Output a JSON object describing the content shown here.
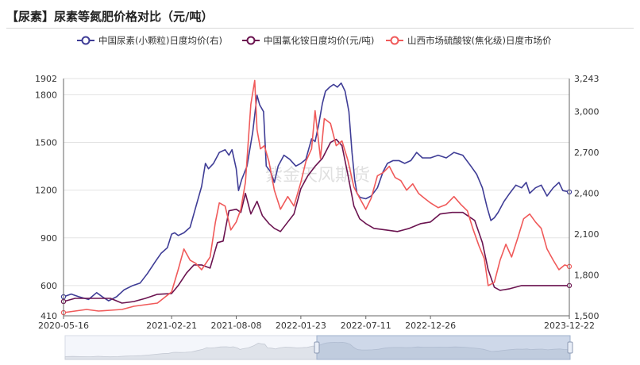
{
  "title": "【尿素】尿素等氮肥价格对比（元/吨）",
  "watermark": "紫金天风期货",
  "chart_data": {
    "type": "line",
    "title": "【尿素】尿素等氮肥价格对比（元/吨）",
    "x_ticks": [
      "2020-05-16",
      "2021-02-21",
      "2021-08-08",
      "2022-01-23",
      "2022-07-11",
      "2022-12-26",
      "2023-12-22"
    ],
    "x_range": [
      "2020-05-16",
      "2023-12-22"
    ],
    "y_left": {
      "ticks": [
        410,
        600,
        900,
        1200,
        1500,
        1800,
        1902
      ],
      "range": [
        410,
        1902
      ]
    },
    "y_right": {
      "ticks": [
        1500,
        1800,
        2100,
        2400,
        2700,
        3000,
        3243
      ],
      "range": [
        1500,
        3243
      ]
    },
    "legend_position": "top",
    "grid": true,
    "series": [
      {
        "name": "中国尿素(小颗粒)日度均价(右)",
        "color": "#3f3d96",
        "axis": "right",
        "points": [
          [
            "2020-05-16",
            1640
          ],
          [
            "2020-06-05",
            1660
          ],
          [
            "2020-06-25",
            1640
          ],
          [
            "2020-07-20",
            1620
          ],
          [
            "2020-08-10",
            1670
          ],
          [
            "2020-08-25",
            1640
          ],
          [
            "2020-09-10",
            1610
          ],
          [
            "2020-10-01",
            1640
          ],
          [
            "2020-10-20",
            1690
          ],
          [
            "2020-11-10",
            1720
          ],
          [
            "2020-12-01",
            1740
          ],
          [
            "2020-12-20",
            1810
          ],
          [
            "2021-01-10",
            1900
          ],
          [
            "2021-01-25",
            1960
          ],
          [
            "2021-02-10",
            2000
          ],
          [
            "2021-02-21",
            2100
          ],
          [
            "2021-03-01",
            2110
          ],
          [
            "2021-03-10",
            2090
          ],
          [
            "2021-03-25",
            2110
          ],
          [
            "2021-04-10",
            2150
          ],
          [
            "2021-04-25",
            2300
          ],
          [
            "2021-05-10",
            2450
          ],
          [
            "2021-05-20",
            2620
          ],
          [
            "2021-05-28",
            2580
          ],
          [
            "2021-06-10",
            2620
          ],
          [
            "2021-06-25",
            2700
          ],
          [
            "2021-07-10",
            2720
          ],
          [
            "2021-07-20",
            2680
          ],
          [
            "2021-07-28",
            2720
          ],
          [
            "2021-08-08",
            2580
          ],
          [
            "2021-08-14",
            2420
          ],
          [
            "2021-08-22",
            2500
          ],
          [
            "2021-09-05",
            2600
          ],
          [
            "2021-09-20",
            2850
          ],
          [
            "2021-10-01",
            3120
          ],
          [
            "2021-10-08",
            3050
          ],
          [
            "2021-10-18",
            3000
          ],
          [
            "2021-10-25",
            2600
          ],
          [
            "2021-11-05",
            2560
          ],
          [
            "2021-11-15",
            2480
          ],
          [
            "2021-11-25",
            2600
          ],
          [
            "2021-12-10",
            2680
          ],
          [
            "2021-12-25",
            2650
          ],
          [
            "2022-01-10",
            2600
          ],
          [
            "2022-01-23",
            2620
          ],
          [
            "2022-02-05",
            2650
          ],
          [
            "2022-02-20",
            2800
          ],
          [
            "2022-03-01",
            2780
          ],
          [
            "2022-03-10",
            2900
          ],
          [
            "2022-03-20",
            3060
          ],
          [
            "2022-03-28",
            3150
          ],
          [
            "2022-04-08",
            3180
          ],
          [
            "2022-04-18",
            3200
          ],
          [
            "2022-04-28",
            3180
          ],
          [
            "2022-05-08",
            3210
          ],
          [
            "2022-05-18",
            3150
          ],
          [
            "2022-05-28",
            3000
          ],
          [
            "2022-06-05",
            2700
          ],
          [
            "2022-06-12",
            2500
          ],
          [
            "2022-06-18",
            2400
          ],
          [
            "2022-06-26",
            2370
          ],
          [
            "2022-07-11",
            2360
          ],
          [
            "2022-07-25",
            2380
          ],
          [
            "2022-08-10",
            2440
          ],
          [
            "2022-08-25",
            2560
          ],
          [
            "2022-09-05",
            2620
          ],
          [
            "2022-09-20",
            2640
          ],
          [
            "2022-10-05",
            2640
          ],
          [
            "2022-10-20",
            2620
          ],
          [
            "2022-11-05",
            2640
          ],
          [
            "2022-11-20",
            2700
          ],
          [
            "2022-12-05",
            2660
          ],
          [
            "2022-12-26",
            2660
          ],
          [
            "2023-01-15",
            2680
          ],
          [
            "2023-02-05",
            2660
          ],
          [
            "2023-02-25",
            2700
          ],
          [
            "2023-03-20",
            2680
          ],
          [
            "2023-04-10",
            2600
          ],
          [
            "2023-04-25",
            2540
          ],
          [
            "2023-05-10",
            2440
          ],
          [
            "2023-05-22",
            2300
          ],
          [
            "2023-06-01",
            2200
          ],
          [
            "2023-06-10",
            2220
          ],
          [
            "2023-06-20",
            2260
          ],
          [
            "2023-07-05",
            2340
          ],
          [
            "2023-07-20",
            2400
          ],
          [
            "2023-08-05",
            2460
          ],
          [
            "2023-08-20",
            2440
          ],
          [
            "2023-09-01",
            2480
          ],
          [
            "2023-09-10",
            2400
          ],
          [
            "2023-09-25",
            2440
          ],
          [
            "2023-10-10",
            2460
          ],
          [
            "2023-10-25",
            2380
          ],
          [
            "2023-11-10",
            2440
          ],
          [
            "2023-11-25",
            2480
          ],
          [
            "2023-12-05",
            2420
          ],
          [
            "2023-12-22",
            2410
          ]
        ]
      },
      {
        "name": "中国氯化铵日度均价(元/吨)",
        "color": "#6b1450",
        "axis": "left",
        "points": [
          [
            "2020-05-16",
            500
          ],
          [
            "2020-06-15",
            520
          ],
          [
            "2020-07-15",
            520
          ],
          [
            "2020-08-15",
            520
          ],
          [
            "2020-09-15",
            520
          ],
          [
            "2020-10-15",
            490
          ],
          [
            "2020-11-15",
            500
          ],
          [
            "2020-12-15",
            520
          ],
          [
            "2021-01-15",
            545
          ],
          [
            "2021-02-21",
            550
          ],
          [
            "2021-03-10",
            600
          ],
          [
            "2021-04-01",
            680
          ],
          [
            "2021-04-20",
            730
          ],
          [
            "2021-05-10",
            730
          ],
          [
            "2021-06-01",
            710
          ],
          [
            "2021-06-20",
            870
          ],
          [
            "2021-07-05",
            880
          ],
          [
            "2021-07-20",
            1070
          ],
          [
            "2021-08-08",
            1080
          ],
          [
            "2021-08-20",
            1060
          ],
          [
            "2021-09-01",
            1180
          ],
          [
            "2021-09-15",
            1050
          ],
          [
            "2021-10-01",
            1130
          ],
          [
            "2021-10-15",
            1040
          ],
          [
            "2021-11-01",
            990
          ],
          [
            "2021-11-15",
            960
          ],
          [
            "2021-12-01",
            940
          ],
          [
            "2021-12-20",
            1000
          ],
          [
            "2022-01-05",
            1050
          ],
          [
            "2022-01-23",
            1210
          ],
          [
            "2022-02-10",
            1290
          ],
          [
            "2022-03-01",
            1350
          ],
          [
            "2022-03-20",
            1400
          ],
          [
            "2022-04-10",
            1500
          ],
          [
            "2022-04-25",
            1520
          ],
          [
            "2022-05-10",
            1480
          ],
          [
            "2022-05-25",
            1300
          ],
          [
            "2022-06-10",
            1100
          ],
          [
            "2022-06-25",
            1020
          ],
          [
            "2022-07-11",
            990
          ],
          [
            "2022-08-01",
            960
          ],
          [
            "2022-09-01",
            950
          ],
          [
            "2022-10-01",
            940
          ],
          [
            "2022-11-01",
            960
          ],
          [
            "2022-12-01",
            990
          ],
          [
            "2022-12-26",
            1000
          ],
          [
            "2023-01-20",
            1050
          ],
          [
            "2023-02-20",
            1060
          ],
          [
            "2023-03-20",
            1060
          ],
          [
            "2023-04-20",
            1010
          ],
          [
            "2023-05-10",
            870
          ],
          [
            "2023-05-25",
            700
          ],
          [
            "2023-06-10",
            590
          ],
          [
            "2023-06-25",
            570
          ],
          [
            "2023-07-20",
            580
          ],
          [
            "2023-08-20",
            600
          ],
          [
            "2023-09-20",
            600
          ],
          [
            "2023-10-20",
            600
          ],
          [
            "2023-11-20",
            600
          ],
          [
            "2023-12-22",
            600
          ]
        ]
      },
      {
        "name": "山西市场硫酸铵(焦化级)日度市场价",
        "color": "#f05a5a",
        "axis": "left",
        "points": [
          [
            "2020-05-16",
            430
          ],
          [
            "2020-06-15",
            440
          ],
          [
            "2020-07-15",
            450
          ],
          [
            "2020-08-15",
            440
          ],
          [
            "2020-09-15",
            445
          ],
          [
            "2020-10-15",
            450
          ],
          [
            "2020-11-15",
            470
          ],
          [
            "2020-12-15",
            480
          ],
          [
            "2021-01-15",
            490
          ],
          [
            "2021-02-21",
            560
          ],
          [
            "2021-03-10",
            700
          ],
          [
            "2021-03-25",
            830
          ],
          [
            "2021-04-10",
            760
          ],
          [
            "2021-04-25",
            740
          ],
          [
            "2021-05-10",
            700
          ],
          [
            "2021-06-01",
            780
          ],
          [
            "2021-06-15",
            1000
          ],
          [
            "2021-06-25",
            1120
          ],
          [
            "2021-07-10",
            1100
          ],
          [
            "2021-07-25",
            950
          ],
          [
            "2021-08-08",
            1000
          ],
          [
            "2021-08-20",
            1080
          ],
          [
            "2021-09-01",
            1250
          ],
          [
            "2021-09-15",
            1740
          ],
          [
            "2021-09-25",
            1890
          ],
          [
            "2021-10-01",
            1580
          ],
          [
            "2021-10-10",
            1460
          ],
          [
            "2021-10-20",
            1480
          ],
          [
            "2021-11-01",
            1380
          ],
          [
            "2021-11-15",
            1200
          ],
          [
            "2021-12-01",
            1080
          ],
          [
            "2021-12-20",
            1160
          ],
          [
            "2022-01-05",
            1100
          ],
          [
            "2022-01-23",
            1250
          ],
          [
            "2022-02-05",
            1380
          ],
          [
            "2022-02-20",
            1460
          ],
          [
            "2022-03-01",
            1700
          ],
          [
            "2022-03-15",
            1400
          ],
          [
            "2022-03-25",
            1650
          ],
          [
            "2022-04-10",
            1620
          ],
          [
            "2022-04-25",
            1480
          ],
          [
            "2022-05-10",
            1510
          ],
          [
            "2022-05-25",
            1390
          ],
          [
            "2022-06-10",
            1220
          ],
          [
            "2022-06-25",
            1150
          ],
          [
            "2022-07-11",
            1080
          ],
          [
            "2022-07-25",
            1150
          ],
          [
            "2022-08-10",
            1290
          ],
          [
            "2022-08-25",
            1310
          ],
          [
            "2022-09-10",
            1350
          ],
          [
            "2022-09-25",
            1280
          ],
          [
            "2022-10-10",
            1260
          ],
          [
            "2022-10-25",
            1200
          ],
          [
            "2022-11-10",
            1240
          ],
          [
            "2022-11-25",
            1180
          ],
          [
            "2022-12-10",
            1150
          ],
          [
            "2022-12-26",
            1120
          ],
          [
            "2023-01-15",
            1090
          ],
          [
            "2023-02-05",
            1110
          ],
          [
            "2023-02-25",
            1160
          ],
          [
            "2023-03-15",
            1110
          ],
          [
            "2023-04-01",
            1070
          ],
          [
            "2023-04-15",
            960
          ],
          [
            "2023-05-01",
            850
          ],
          [
            "2023-05-15",
            770
          ],
          [
            "2023-05-25",
            600
          ],
          [
            "2023-06-10",
            620
          ],
          [
            "2023-06-25",
            760
          ],
          [
            "2023-07-10",
            860
          ],
          [
            "2023-07-25",
            780
          ],
          [
            "2023-08-10",
            900
          ],
          [
            "2023-08-25",
            1020
          ],
          [
            "2023-09-10",
            1050
          ],
          [
            "2023-09-25",
            1000
          ],
          [
            "2023-10-10",
            960
          ],
          [
            "2023-10-25",
            830
          ],
          [
            "2023-11-10",
            760
          ],
          [
            "2023-11-25",
            700
          ],
          [
            "2023-12-10",
            730
          ],
          [
            "2023-12-22",
            720
          ]
        ]
      }
    ]
  }
}
